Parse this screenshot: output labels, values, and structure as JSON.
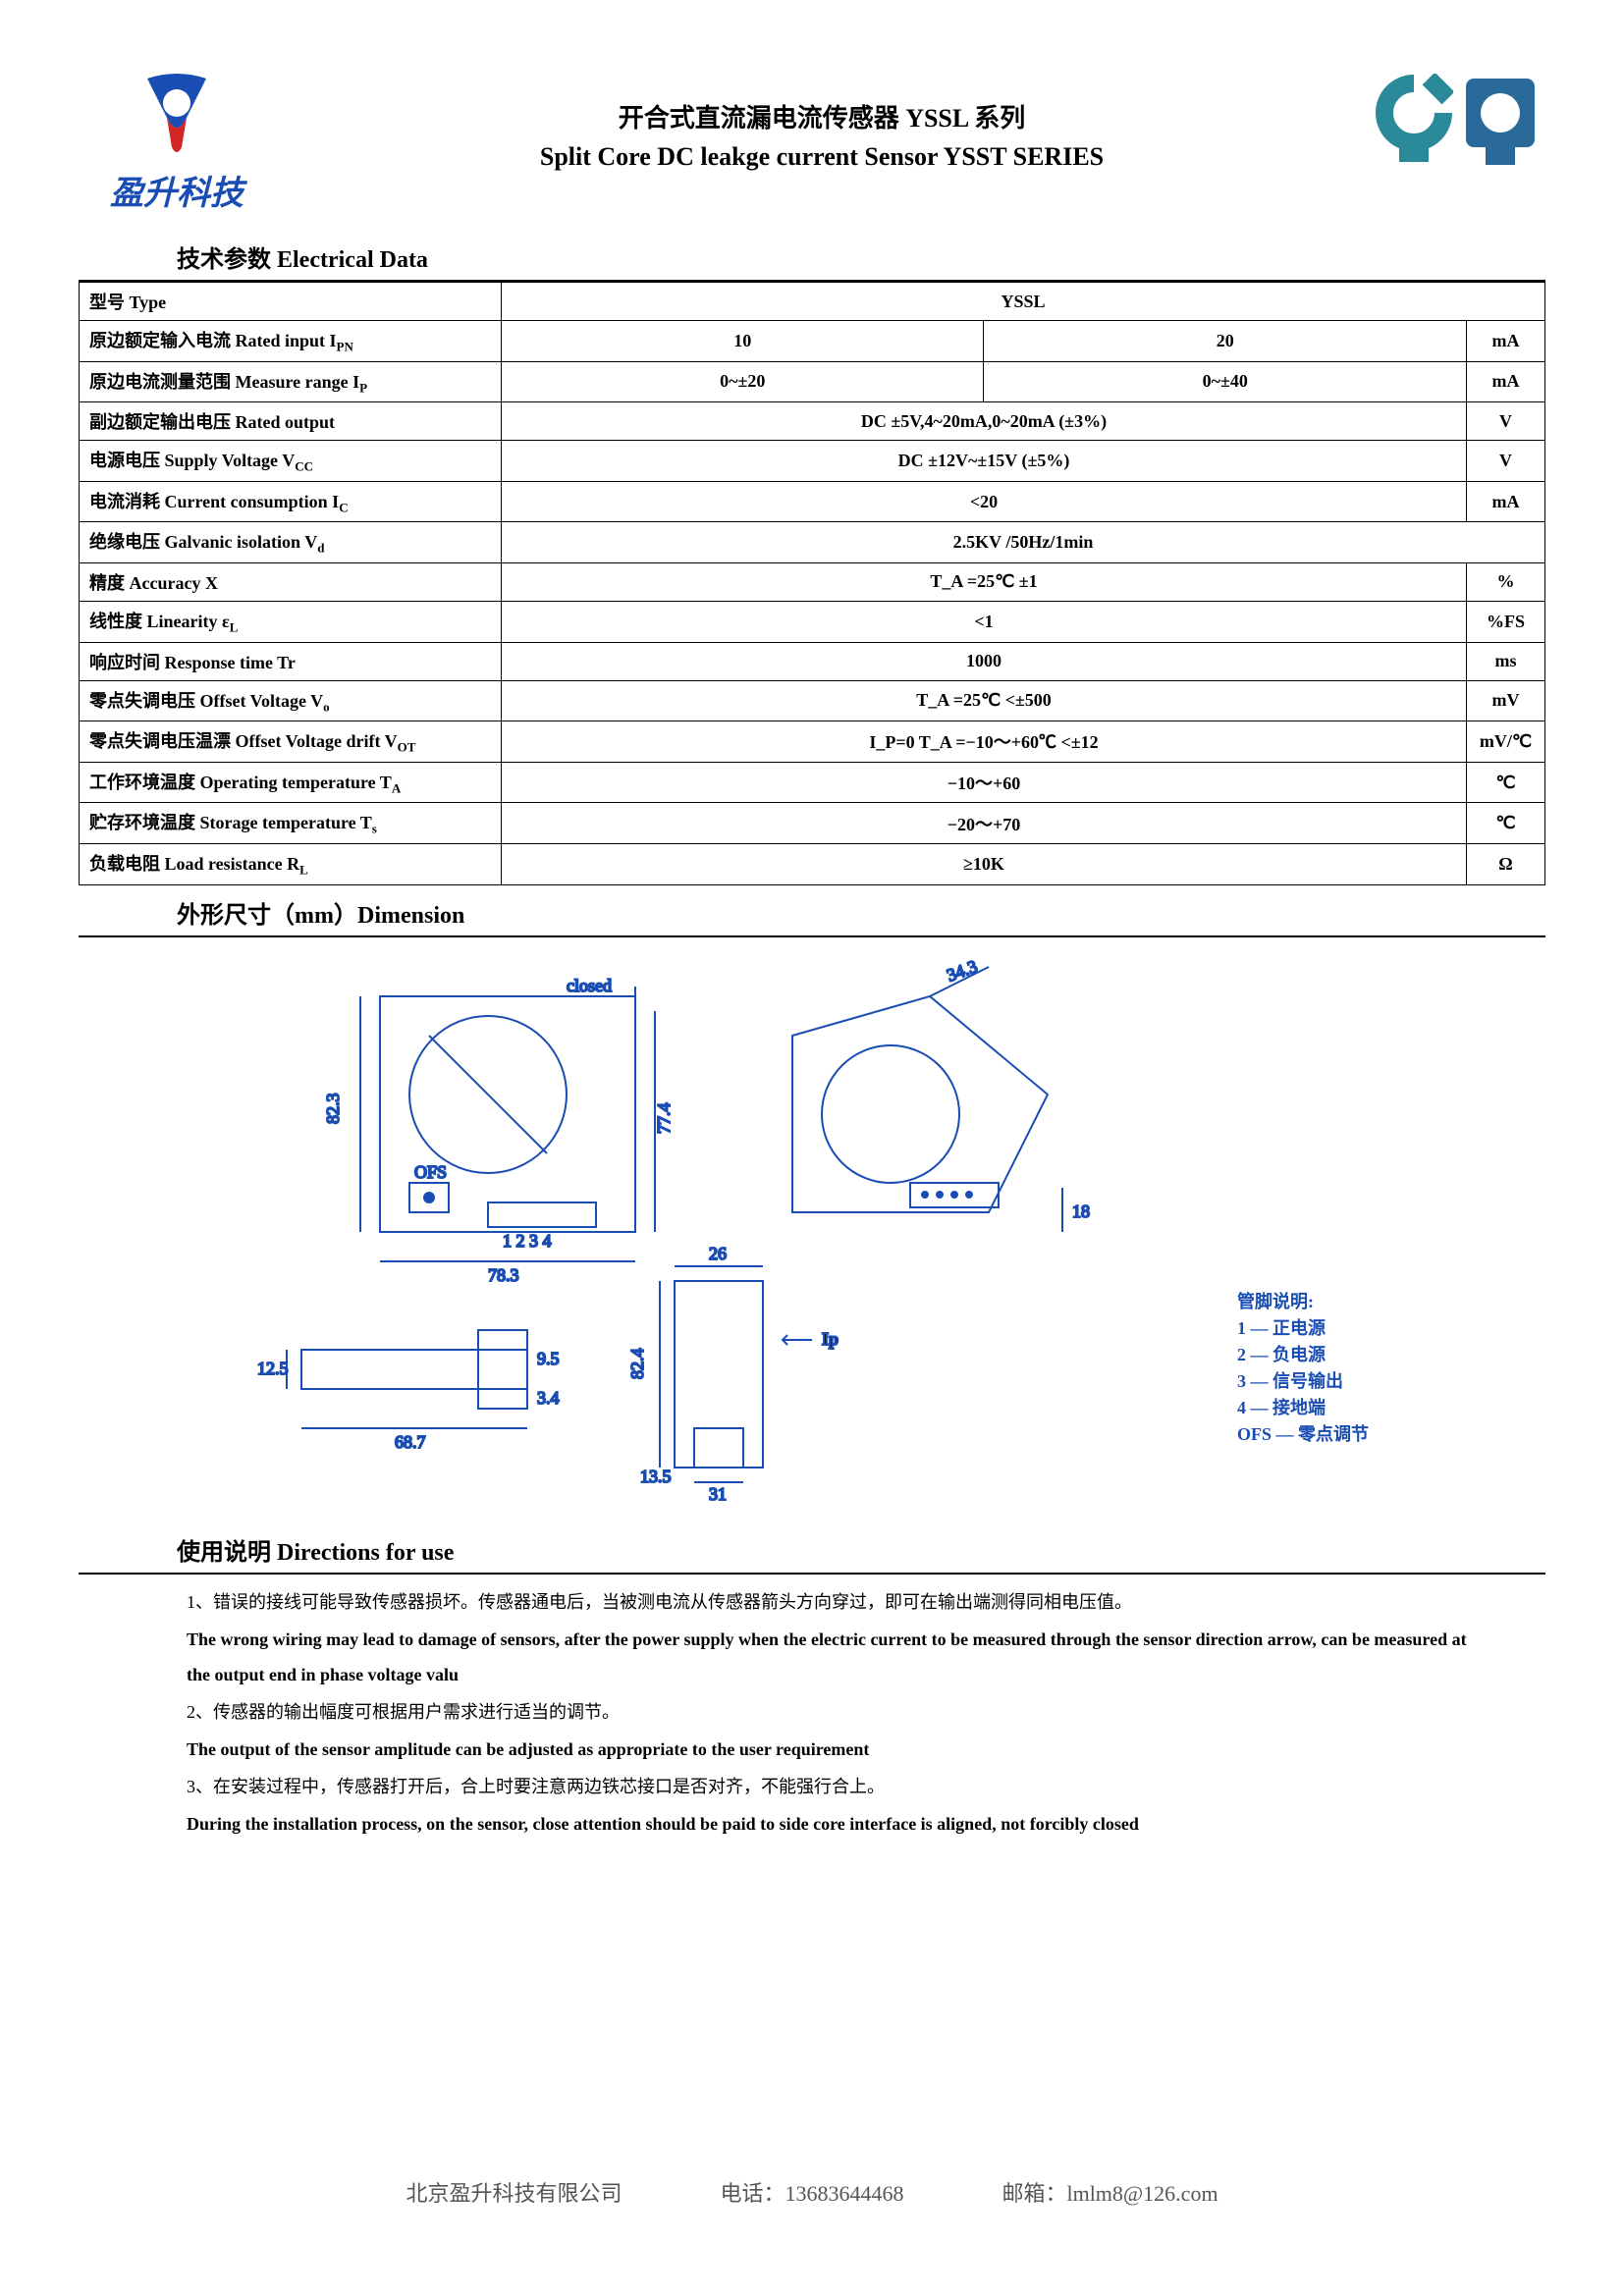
{
  "header": {
    "logo_text": "盈升科技",
    "title_cn": "开合式直流漏电流传感器  YSSL 系列",
    "title_en": "Split Core DC leakge current Sensor  YSST SERIES",
    "logo_colors": {
      "blue": "#1a4db3",
      "red": "#d32626"
    },
    "product_colors": {
      "teal": "#2a8a9a",
      "blue": "#2a6a9a"
    }
  },
  "section_titles": {
    "spec": "技术参数 Electrical Data",
    "dimension": "外形尺寸（mm）Dimension",
    "directions": "使用说明 Directions for use"
  },
  "spec_table": {
    "type_label": "型号 Type",
    "type_value": "YSSL",
    "rows": [
      {
        "label": "原边额定输入电流  Rated input I",
        "sub": "PN",
        "v1": "10",
        "v2": "20",
        "unit": "mA"
      },
      {
        "label": "原边电流测量范围 Measure range I",
        "sub": "P",
        "v1": "0~±20",
        "v2": "0~±40",
        "unit": "mA"
      },
      {
        "label": "副边额定输出电压 Rated output",
        "sub": "",
        "v": "DC    ±5V,4~20mA,0~20mA (±3%)",
        "unit": "V"
      },
      {
        "label": "电源电压 Supply Voltage V",
        "sub": "CC",
        "v": "DC  ±12V~±15V  (±5%)",
        "unit": "V"
      },
      {
        "label": "电流消耗 Current consumption I",
        "sub": "C",
        "v": "<20",
        "unit": "mA"
      },
      {
        "label": "绝缘电压 Galvanic isolation V",
        "sub": "d",
        "v": "2.5KV /50Hz/1min",
        "unit": ""
      },
      {
        "label": "精度 Accuracy X",
        "sub": "",
        "v": "T_A =25℃                          ±1",
        "unit": "%"
      },
      {
        "label": "线性度 Linearity  ε",
        "sub": "L",
        "v": "<1",
        "unit": "%FS"
      },
      {
        "label": "响应时间 Response time Tr",
        "sub": "",
        "v": "1000",
        "unit": "ms"
      },
      {
        "label": "零点失调电压 Offset Voltage V",
        "sub": "o",
        "v": "T_A =25℃                        <±500",
        "unit": "mV"
      },
      {
        "label": "零点失调电压温漂 Offset Voltage drift V",
        "sub": "OT",
        "v": "I_P=0   T_A =−10～+60℃              <±12",
        "unit": "mV/℃"
      },
      {
        "label": "工作环境温度 Operating temperature T",
        "sub": "A",
        "v": "−10～+60",
        "unit": "℃"
      },
      {
        "label": "贮存环境温度 Storage temperature T",
        "sub": "s",
        "v": "−20～+70",
        "unit": "℃"
      },
      {
        "label": "负载电阻 Load resistance R",
        "sub": "L",
        "v": "≥10K",
        "unit": "Ω"
      }
    ]
  },
  "dimension": {
    "values": {
      "closed_label": "closed",
      "h1": "82.3",
      "h2": "77.4",
      "w1": "78.3",
      "diag": "34.3",
      "h3": "18",
      "ofs": "OFS",
      "pins": "1  2  3  4",
      "w2": "26",
      "h4": "82.4",
      "w3": "31",
      "h5": "13.5",
      "ip": "Ip",
      "side_h": "12.5",
      "side_w": "68.7",
      "side_r": "9.5",
      "side_d": "3.4"
    },
    "diagram_colors": {
      "line": "#1a4db3",
      "bg": "#ffffff"
    }
  },
  "pin_legend": {
    "title": "管脚说明:",
    "items": [
      "1 — 正电源",
      "2 — 负电源",
      "3 — 信号输出",
      "4 — 接地端",
      "OFS — 零点调节"
    ]
  },
  "directions": {
    "items": [
      {
        "cn": "1、错误的接线可能导致传感器损坏。传感器通电后，当被测电流从传感器箭头方向穿过，即可在输出端测得同相电压值。",
        "en": "The wrong wiring may lead to damage of sensors, after the power supply when the electric current to be measured through the sensor direction arrow, can be measured at the output end in phase voltage valu"
      },
      {
        "cn": "2、传感器的输出幅度可根据用户需求进行适当的调节。",
        "en": "The output of the sensor amplitude can be adjusted as appropriate to the user requirement"
      },
      {
        "cn": "3、在安装过程中，传感器打开后，合上时要注意两边铁芯接口是否对齐，不能强行合上。",
        "en": "During the installation process, on the sensor, close attention should be paid to side core interface is aligned, not forcibly closed"
      }
    ]
  },
  "footer": {
    "company": "北京盈升科技有限公司",
    "phone": "电话：13683644468",
    "email": "邮箱：lmlm8@126.com"
  }
}
